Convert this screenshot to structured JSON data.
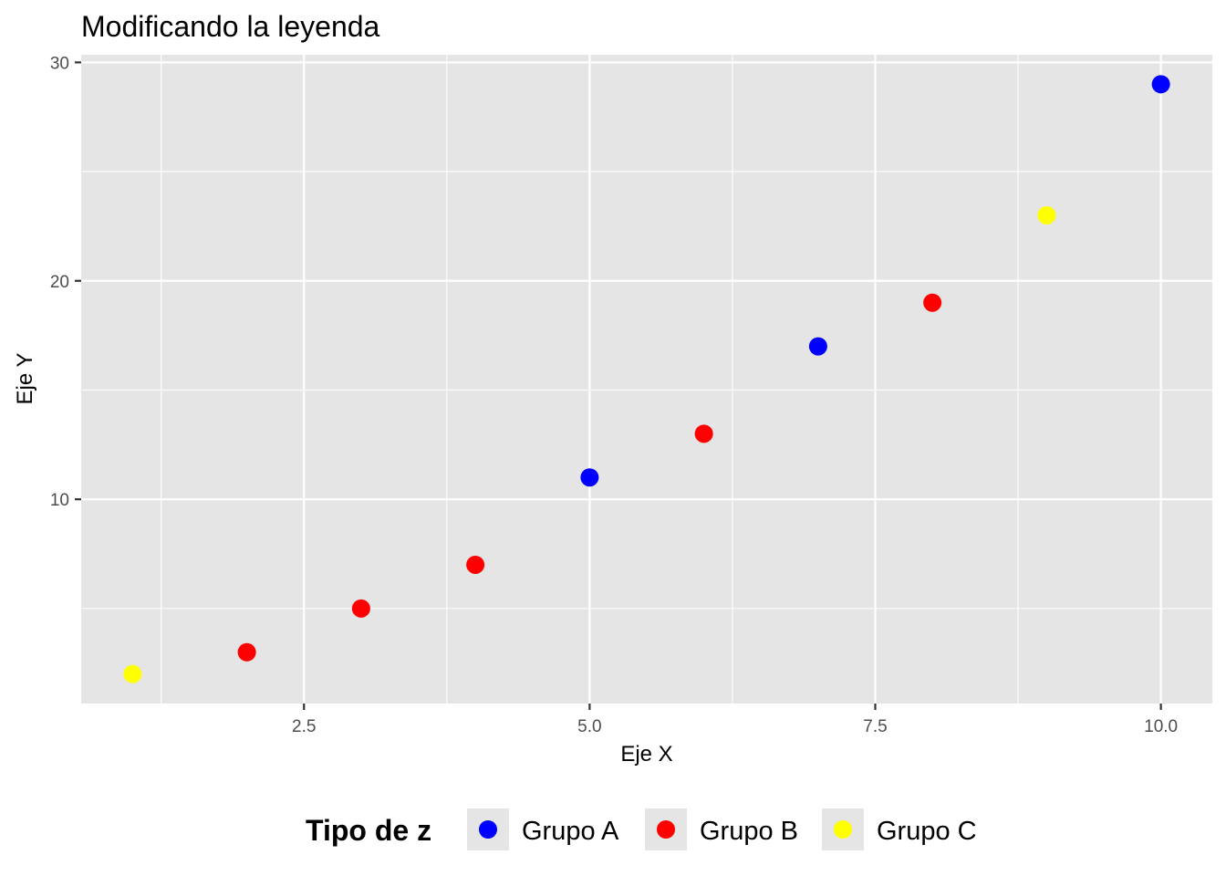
{
  "chart_data": {
    "type": "scatter",
    "title": "Modificando la leyenda",
    "xlabel": "Eje X",
    "ylabel": "Eje Y",
    "xlim": [
      0.55,
      10.45
    ],
    "ylim": [
      0.65,
      30.35
    ],
    "x_ticks": [
      2.5,
      5.0,
      7.5,
      10.0
    ],
    "x_tick_labels": [
      "2.5",
      "5.0",
      "7.5",
      "10.0"
    ],
    "x_minor_ticks": [
      1.25,
      3.75,
      6.25,
      8.75
    ],
    "y_ticks": [
      10,
      20,
      30
    ],
    "y_tick_labels": [
      "10",
      "20",
      "30"
    ],
    "y_minor_ticks": [
      5,
      15,
      25
    ],
    "grid": true,
    "legend": {
      "title": "Tipo de z",
      "placement": "bottom",
      "entries": [
        {
          "label": "Grupo A",
          "color": "#0000FF"
        },
        {
          "label": "Grupo B",
          "color": "#FF0000"
        },
        {
          "label": "Grupo C",
          "color": "#FFFF00"
        }
      ]
    },
    "series": [
      {
        "name": "Grupo A",
        "color": "#0000FF",
        "points": [
          {
            "x": 5,
            "y": 11
          },
          {
            "x": 7,
            "y": 17
          },
          {
            "x": 10,
            "y": 29
          }
        ]
      },
      {
        "name": "Grupo B",
        "color": "#FF0000",
        "points": [
          {
            "x": 2,
            "y": 3
          },
          {
            "x": 3,
            "y": 5
          },
          {
            "x": 4,
            "y": 7
          },
          {
            "x": 6,
            "y": 13
          },
          {
            "x": 8,
            "y": 19
          }
        ]
      },
      {
        "name": "Grupo C",
        "color": "#FFFF00",
        "points": [
          {
            "x": 1,
            "y": 2
          },
          {
            "x": 9,
            "y": 23
          }
        ]
      }
    ],
    "panel_background": "#E5E5E5",
    "grid_color": "#FFFFFF"
  }
}
